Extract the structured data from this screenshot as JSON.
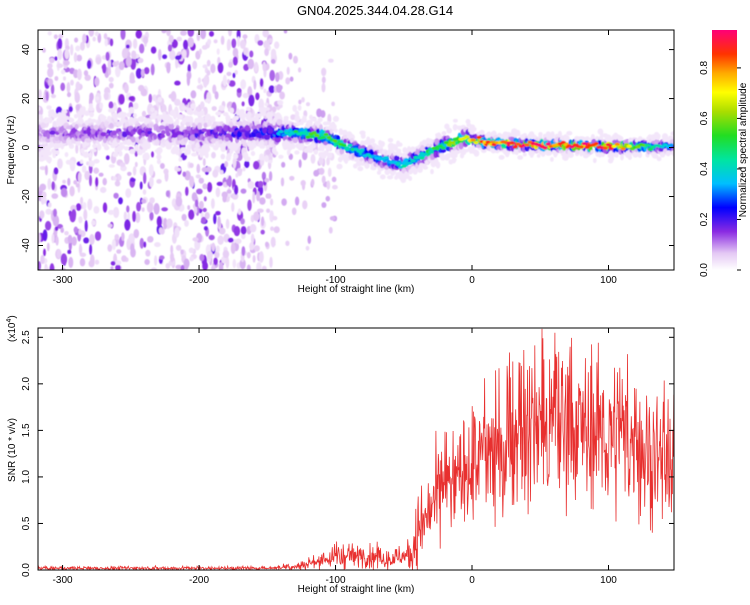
{
  "title": "GN04.2025.344.04.28.G14",
  "chart_data": [
    {
      "type": "heatmap",
      "xlabel": "Height of straight line (km)",
      "ylabel": "Frequency (Hz)",
      "xlim": [
        -318,
        148
      ],
      "ylim": [
        -50,
        48
      ],
      "xticks": [
        -300,
        -200,
        -100,
        0,
        100
      ],
      "yticks": [
        -40,
        -20,
        0,
        20,
        40
      ],
      "colorbar": {
        "label": "Normalized spectral amplitude",
        "range": [
          0,
          0.95
        ],
        "ticks": [
          0.0,
          0.2,
          0.4,
          0.6,
          0.8
        ],
        "ticklabels": [
          "0.0",
          "0.2",
          "0.4",
          "0.6",
          "0.8"
        ]
      },
      "ridge": {
        "x": [
          -318,
          -200,
          -150,
          -130,
          -110,
          -95,
          -80,
          -65,
          -50,
          -35,
          -20,
          -5,
          10,
          50,
          100,
          148
        ],
        "frequency_hz": [
          6,
          6,
          6,
          6,
          5,
          1,
          -2,
          -5,
          -7,
          -3,
          1,
          4,
          2,
          1,
          0.5,
          0.5
        ],
        "peak_amplitude": [
          0.15,
          0.2,
          0.25,
          0.45,
          0.55,
          0.5,
          0.4,
          0.35,
          0.4,
          0.45,
          0.55,
          0.65,
          0.85,
          0.9,
          0.85,
          0.3
        ]
      }
    },
    {
      "type": "line",
      "xlabel": "Height of straight line (km)",
      "ylabel": "SNR (10 * v/v)",
      "scale_label": "(x10",
      "scale_exponent": "4",
      "xlim": [
        -318,
        148
      ],
      "ylim": [
        0,
        2.6
      ],
      "xticks": [
        -300,
        -200,
        -100,
        0,
        100
      ],
      "yticks": [
        0.0,
        0.5,
        1.0,
        1.5,
        2.0,
        2.5
      ],
      "yticklabels": [
        "0.0",
        "0.5",
        "1.0",
        "1.5",
        "2.0",
        "2.5"
      ],
      "series": [
        {
          "name": "SNR",
          "color": "#e8302f",
          "envelope_x": [
            -318,
            -150,
            -125,
            -100,
            -80,
            -60,
            -45,
            -35,
            -25,
            -10,
            0,
            20,
            40,
            60,
            80,
            100,
            120,
            148
          ],
          "envelope_y": [
            0.02,
            0.02,
            0.05,
            0.15,
            0.15,
            0.1,
            0.2,
            0.55,
            0.85,
            1.0,
            1.1,
            1.35,
            1.5,
            1.55,
            1.55,
            1.45,
            1.35,
            1.2
          ]
        }
      ]
    }
  ],
  "colors": {
    "line": "#e8302f",
    "axis": "#000000"
  }
}
